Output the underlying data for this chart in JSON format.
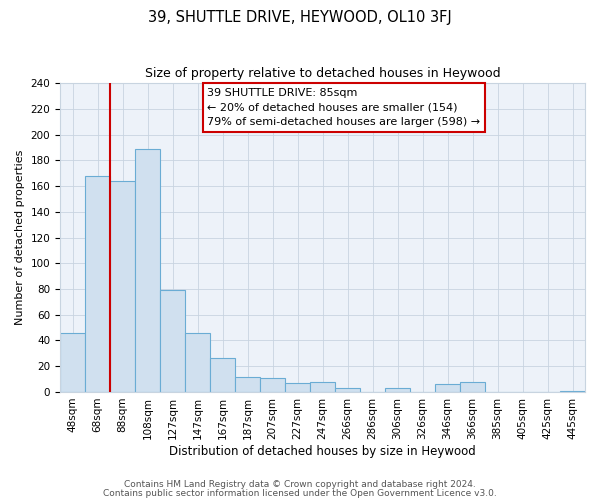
{
  "title": "39, SHUTTLE DRIVE, HEYWOOD, OL10 3FJ",
  "subtitle": "Size of property relative to detached houses in Heywood",
  "xlabel": "Distribution of detached houses by size in Heywood",
  "ylabel": "Number of detached properties",
  "bin_labels": [
    "48sqm",
    "68sqm",
    "88sqm",
    "108sqm",
    "127sqm",
    "147sqm",
    "167sqm",
    "187sqm",
    "207sqm",
    "227sqm",
    "247sqm",
    "266sqm",
    "286sqm",
    "306sqm",
    "326sqm",
    "346sqm",
    "366sqm",
    "385sqm",
    "405sqm",
    "425sqm",
    "445sqm"
  ],
  "bar_values": [
    46,
    168,
    164,
    189,
    79,
    46,
    26,
    12,
    11,
    7,
    8,
    3,
    0,
    3,
    0,
    6,
    8,
    0,
    0,
    0,
    1
  ],
  "bar_color": "#d0e0ef",
  "bar_edge_color": "#6aacd4",
  "red_line_x": 2,
  "annotation_title": "39 SHUTTLE DRIVE: 85sqm",
  "annotation_line1": "← 20% of detached houses are smaller (154)",
  "annotation_line2": "79% of semi-detached houses are larger (598) →",
  "annotation_box_edge": "#cc0000",
  "red_line_color": "#cc0000",
  "footer_line1": "Contains HM Land Registry data © Crown copyright and database right 2024.",
  "footer_line2": "Contains public sector information licensed under the Open Government Licence v3.0.",
  "ylim": [
    0,
    240
  ],
  "fig_background": "#ffffff",
  "plot_background": "#edf2f9",
  "grid_color": "#c8d4e0",
  "title_fontsize": 10.5,
  "subtitle_fontsize": 9,
  "ylabel_fontsize": 8,
  "xlabel_fontsize": 8.5,
  "tick_fontsize": 7.5,
  "footer_fontsize": 6.5,
  "annotation_fontsize": 8
}
